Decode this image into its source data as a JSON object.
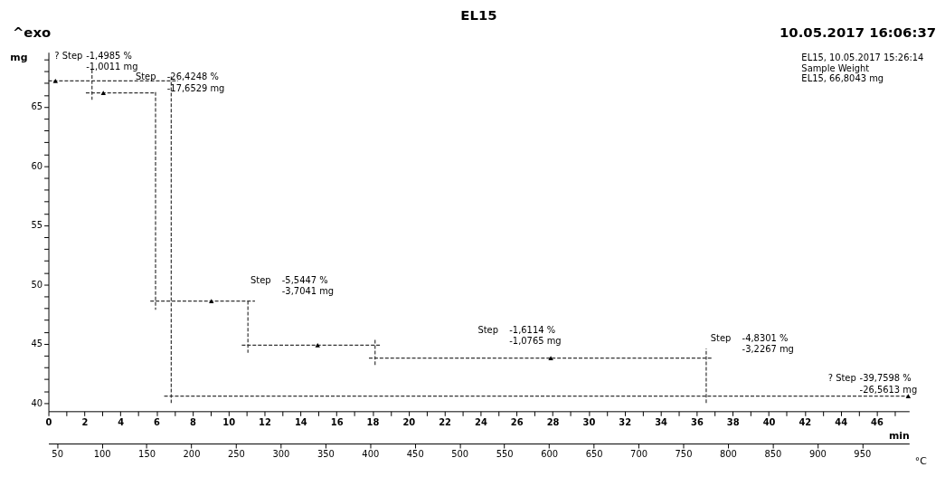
{
  "chart_data": {
    "type": "line",
    "title": "EL15",
    "xlabel": "min",
    "ylabel": "mg",
    "x2label": "°C",
    "xlim": [
      0,
      47.8
    ],
    "ylim": [
      39.3,
      69.6
    ],
    "x2lim": [
      40.3,
      1002.6
    ],
    "xticks": [
      0,
      {
        "value": 1,
        "label": null
      },
      2,
      {
        "value": 3,
        "label": null
      },
      4,
      {
        "value": 5,
        "label": null
      },
      6,
      {
        "value": 7,
        "label": null
      },
      8,
      {
        "value": 9,
        "label": null
      },
      10,
      {
        "value": 11,
        "label": null
      },
      12,
      {
        "value": 13,
        "label": null
      },
      14,
      {
        "value": 15,
        "label": null
      },
      16,
      {
        "value": 17,
        "label": null
      },
      18,
      {
        "value": 19,
        "label": null
      },
      20,
      {
        "value": 21,
        "label": null
      },
      22,
      {
        "value": 23,
        "label": null
      },
      24,
      {
        "value": 25,
        "label": null
      },
      26,
      {
        "value": 27,
        "label": null
      },
      28,
      {
        "value": 29,
        "label": null
      },
      30,
      {
        "value": 31,
        "label": null
      },
      32,
      {
        "value": 33,
        "label": null
      },
      34,
      {
        "value": 35,
        "label": null
      },
      36,
      {
        "value": 37,
        "label": null
      },
      38,
      {
        "value": 39,
        "label": null
      },
      40,
      {
        "value": 41,
        "label": null
      },
      42,
      {
        "value": 43,
        "label": null
      },
      44,
      {
        "value": 45,
        "label": null
      },
      46,
      {
        "value": 47,
        "label": null
      }
    ],
    "x2ticks": [
      50,
      100,
      150,
      200,
      250,
      300,
      350,
      400,
      450,
      500,
      550,
      600,
      650,
      700,
      750,
      800,
      850,
      900,
      950
    ],
    "yticks": [
      40,
      {
        "value": 41,
        "label": null
      },
      {
        "value": 42,
        "label": null
      },
      {
        "value": 43,
        "label": null
      },
      {
        "value": 44,
        "label": null
      },
      45,
      {
        "value": 46,
        "label": null
      },
      {
        "value": 47,
        "label": null
      },
      {
        "value": 48,
        "label": null
      },
      {
        "value": 49,
        "label": null
      },
      50,
      {
        "value": 51,
        "label": null
      },
      {
        "value": 52,
        "label": null
      },
      {
        "value": 53,
        "label": null
      },
      {
        "value": 54,
        "label": null
      },
      55,
      {
        "value": 56,
        "label": null
      },
      {
        "value": 57,
        "label": null
      },
      {
        "value": 58,
        "label": null
      },
      {
        "value": 59,
        "label": null
      },
      60,
      {
        "value": 61,
        "label": null
      },
      {
        "value": 62,
        "label": null
      },
      {
        "value": 63,
        "label": null
      },
      {
        "value": 64,
        "label": null
      },
      65,
      {
        "value": 66,
        "label": null
      },
      {
        "value": 67,
        "label": null
      },
      {
        "value": 68,
        "label": null
      },
      {
        "value": 69,
        "label": null
      }
    ],
    "grid": false,
    "marker": "none",
    "line_style": "dashed",
    "series": [
      {
        "color": "#333333",
        "x": [
          0,
          7.2
        ],
        "values": [
          67.19,
          67.19
        ]
      },
      {
        "color": "#333333",
        "x": [
          2.08,
          5.9
        ],
        "values": [
          66.17,
          66.17
        ]
      },
      {
        "color": "#333333",
        "x": [
          5.66,
          11.47
        ],
        "values": [
          48.6,
          48.6
        ]
      },
      {
        "color": "#333333",
        "x": [
          10.74,
          18.48
        ],
        "values": [
          44.88,
          44.88
        ]
      },
      {
        "color": "#333333",
        "x": [
          17.8,
          36.9
        ],
        "values": [
          43.79,
          43.79
        ]
      },
      {
        "color": "#333333",
        "x": [
          6.43,
          47.8
        ],
        "values": [
          40.58,
          40.58
        ]
      },
      {
        "color": "#333333",
        "x": [
          2.42,
          2.42
        ],
        "values": [
          68.13,
          65.58
        ]
      },
      {
        "color": "#333333",
        "x": [
          5.95,
          5.95
        ],
        "values": [
          66.24,
          47.87
        ]
      },
      {
        "color": "#333333",
        "x": [
          6.82,
          6.82
        ],
        "values": [
          67.55,
          40.0
        ]
      },
      {
        "color": "#333333",
        "x": [
          11.08,
          11.08
        ],
        "values": [
          48.6,
          44.23
        ]
      },
      {
        "color": "#333333",
        "x": [
          18.14,
          18.14
        ],
        "values": [
          45.32,
          43.13
        ]
      },
      {
        "color": "#333333",
        "x": [
          36.53,
          36.53
        ],
        "values": [
          40.0,
          44.59
        ]
      },
      {
        "type": "scatter",
        "color": "#000000",
        "marker": "triangle",
        "x": [
          0.39,
          3.05,
          9.05,
          14.95,
          27.9,
          47.75
        ],
        "values": [
          67.19,
          66.17,
          48.6,
          44.88,
          43.79,
          40.58
        ]
      }
    ],
    "annotations": [
      "^exo",
      "10.05.2017 16:06:37",
      "EL15, 10.05.2017 15:26:14",
      "Sample Weight",
      "EL15, 66,8043 mg",
      "? Step",
      "-1,4985 %",
      "-1,0011 mg",
      "Step",
      "-26,4248 %",
      "-17,6529 mg",
      "Step",
      "-5,5447 %",
      "-3,7041 mg",
      "Step",
      "-1,6114 %",
      "-1,0765 mg",
      "Step",
      "-4,8301 %",
      "-3,2267 mg",
      "? Step",
      "-39,7598 %",
      "-26,5613 mg"
    ]
  }
}
